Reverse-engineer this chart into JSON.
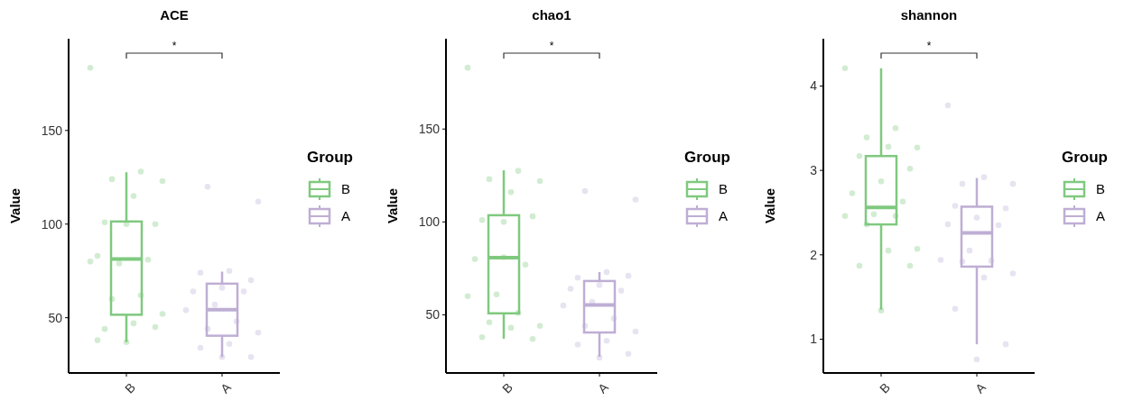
{
  "chart_data": [
    {
      "type": "box",
      "title": "ACE",
      "ylabel": "Value",
      "legend_title": "Group",
      "legend": "right",
      "categories": [
        "B",
        "A"
      ],
      "colors": [
        "#7fc97f",
        "#beaed4"
      ],
      "ylim": [
        20.5,
        199
      ],
      "yticks": [
        50,
        100,
        150
      ],
      "annotations": [
        "*"
      ],
      "boxes": [
        {
          "low": 37,
          "q1": 51.6,
          "median": 81.4,
          "q3": 101.4,
          "high": 127.7
        },
        {
          "low": 29,
          "q1": 40.4,
          "median": 54.3,
          "q3": 68.2,
          "high": 74.6
        }
      ],
      "series": [
        {
          "type": "scatter",
          "name": "B",
          "color": "#7fc97f",
          "x": [
            "B",
            "B",
            "B",
            "B",
            "B",
            "B",
            "B",
            "B",
            "B",
            "B",
            "B",
            "B",
            "B",
            "B",
            "B",
            "B",
            "B",
            "B",
            "B",
            "B"
          ],
          "values": [
            183.5,
            128,
            124,
            123,
            115,
            101,
            100,
            100,
            83,
            81,
            79,
            80,
            62,
            60,
            52,
            47,
            44,
            45,
            37,
            38
          ]
        },
        {
          "type": "scatter",
          "name": "A",
          "color": "#beaed4",
          "x": [
            "A",
            "A",
            "A",
            "A",
            "A",
            "A",
            "A",
            "A",
            "A",
            "A",
            "A",
            "A",
            "A",
            "A",
            "A",
            "A",
            "A"
          ],
          "values": [
            120,
            112,
            75,
            74,
            70,
            66,
            64,
            64,
            57,
            54,
            48,
            44,
            42,
            36,
            34,
            29,
            29
          ]
        }
      ]
    },
    {
      "type": "box",
      "title": "chao1",
      "ylabel": "Value",
      "legend_title": "Group",
      "legend": "right",
      "categories": [
        "B",
        "A"
      ],
      "colors": [
        "#7fc97f",
        "#beaed4"
      ],
      "ylim": [
        18.7,
        198.6
      ],
      "yticks": [
        50,
        100,
        150
      ],
      "annotations": [
        "*"
      ],
      "boxes": [
        {
          "low": 37.1,
          "q1": 50.8,
          "median": 80.8,
          "q3": 103.6,
          "high": 127.8
        },
        {
          "low": 27.4,
          "q1": 40.5,
          "median": 55.3,
          "q3": 68.2,
          "high": 73
        }
      ],
      "series": [
        {
          "type": "scatter",
          "name": "B",
          "color": "#7fc97f",
          "x": [
            "B",
            "B",
            "B",
            "B",
            "B",
            "B",
            "B",
            "B",
            "B",
            "B",
            "B",
            "B",
            "B",
            "B",
            "B",
            "B",
            "B",
            "B",
            "B"
          ],
          "values": [
            183,
            127.5,
            123,
            122,
            116,
            101,
            103,
            81,
            80,
            77,
            61,
            60,
            51,
            46,
            44,
            43,
            38,
            37,
            100
          ]
        },
        {
          "type": "scatter",
          "name": "A",
          "color": "#beaed4",
          "x": [
            "A",
            "A",
            "A",
            "A",
            "A",
            "A",
            "A",
            "A",
            "A",
            "A",
            "A",
            "A",
            "A",
            "A",
            "A",
            "A",
            "A"
          ],
          "values": [
            116.6,
            112,
            73,
            70,
            71,
            66,
            64,
            63,
            57,
            55,
            48,
            44,
            41,
            36,
            34,
            29,
            27
          ]
        }
      ]
    },
    {
      "type": "box",
      "title": "shannon",
      "ylabel": "Value",
      "legend_title": "Group",
      "legend": "right",
      "categories": [
        "B",
        "A"
      ],
      "colors": [
        "#7fc97f",
        "#beaed4"
      ],
      "ylim": [
        0.6,
        4.56
      ],
      "yticks": [
        1,
        2,
        3,
        4
      ],
      "annotations": [
        "*"
      ],
      "boxes": [
        {
          "low": 1.35,
          "q1": 2.36,
          "median": 2.56,
          "q3": 3.17,
          "high": 4.21
        },
        {
          "low": 0.94,
          "q1": 1.86,
          "median": 2.26,
          "q3": 2.57,
          "high": 2.91
        }
      ],
      "series": [
        {
          "type": "scatter",
          "name": "B",
          "color": "#7fc97f",
          "x": [
            "B",
            "B",
            "B",
            "B",
            "B",
            "B",
            "B",
            "B",
            "B",
            "B",
            "B",
            "B",
            "B",
            "B",
            "B",
            "B",
            "B",
            "B",
            "B"
          ],
          "values": [
            4.21,
            3.5,
            3.39,
            3.27,
            3.28,
            3.17,
            3.02,
            2.87,
            2.73,
            2.63,
            2.48,
            2.46,
            2.46,
            2.36,
            2.07,
            2.05,
            1.87,
            1.87,
            1.34
          ]
        },
        {
          "type": "scatter",
          "name": "A",
          "color": "#beaed4",
          "x": [
            "A",
            "A",
            "A",
            "A",
            "A",
            "A",
            "A",
            "A",
            "A",
            "A",
            "A",
            "A",
            "A",
            "A",
            "A",
            "A",
            "A",
            "A"
          ],
          "values": [
            2.84,
            2.84,
            2.92,
            2.58,
            2.55,
            2.44,
            2.36,
            2.35,
            2.05,
            1.94,
            1.93,
            1.92,
            1.78,
            1.73,
            1.36,
            0.94,
            0.76,
            3.77
          ]
        }
      ]
    }
  ]
}
